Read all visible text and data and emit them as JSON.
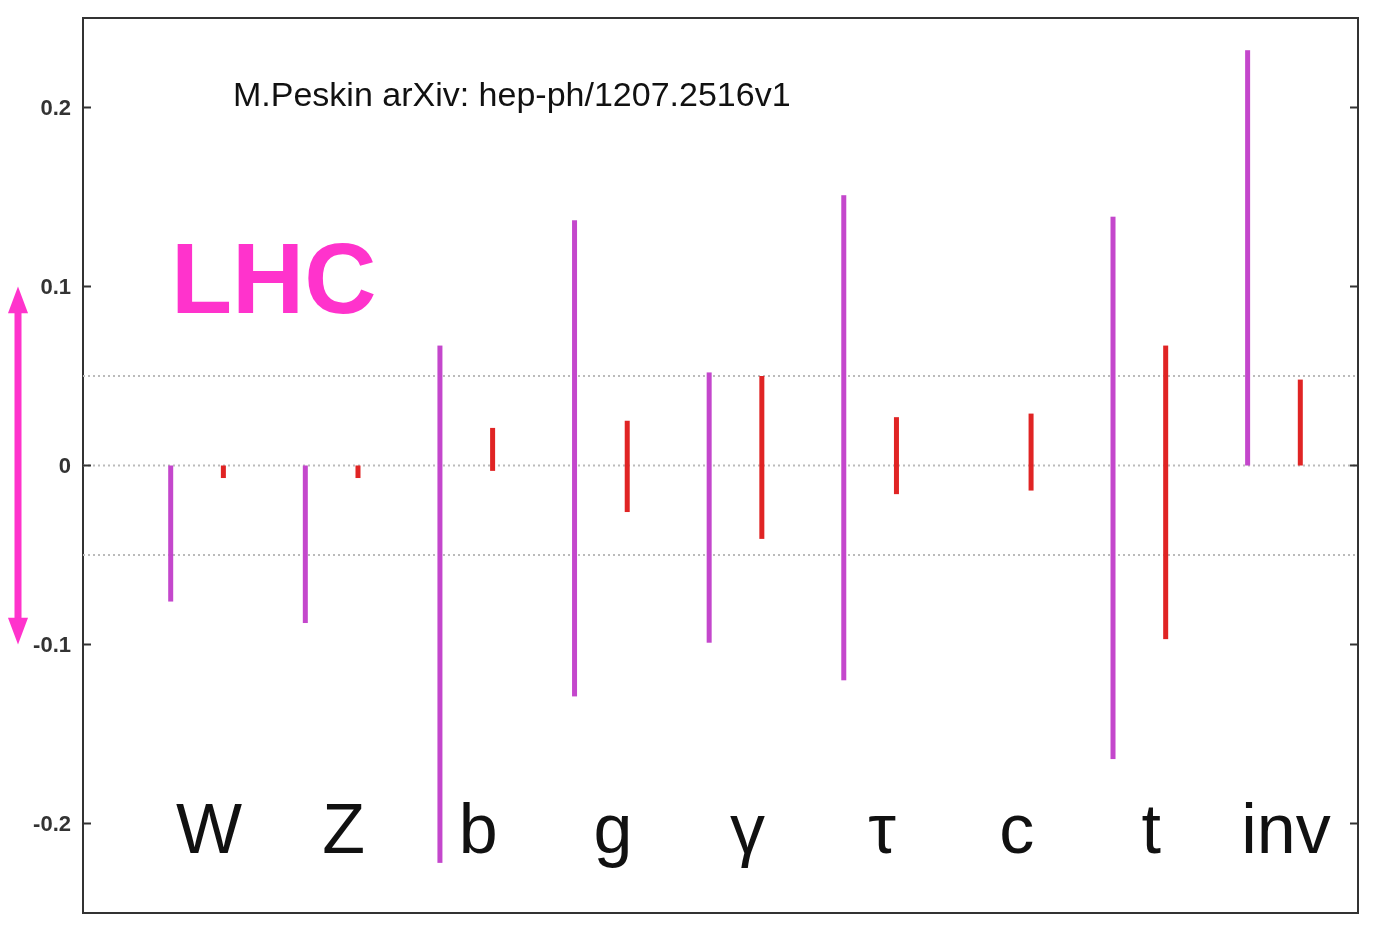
{
  "chart_data": {
    "type": "bar",
    "categories": [
      "W",
      "Z",
      "b",
      "g",
      "γ",
      "τ",
      "c",
      "t",
      "inv"
    ],
    "series": [
      {
        "name": "LHC",
        "color": "#c447cc",
        "base": [
          -0.076,
          -0.088,
          -0.222,
          -0.129,
          -0.099,
          -0.12,
          null,
          -0.164,
          0
        ],
        "values": [
          0.076,
          0.088,
          0.289,
          0.266,
          0.151,
          0.271,
          null,
          0.303,
          0.232
        ]
      },
      {
        "color": "#e02424",
        "base": [
          -0.007,
          -0.007,
          -0.003,
          -0.026,
          -0.041,
          -0.016,
          -0.014,
          -0.097,
          0
        ],
        "values": [
          0.007,
          0.007,
          0.024,
          0.051,
          0.091,
          0.043,
          0.043,
          0.164,
          0.048
        ]
      }
    ],
    "ylim": [
      -0.25,
      0.25
    ],
    "yticks": [
      -0.2,
      -0.1,
      0,
      0.1,
      0.2
    ],
    "ref_lines": [
      {
        "axis": "y",
        "value": 0.05,
        "color": "#bbbbbb",
        "line_style": "dotted"
      },
      {
        "axis": "y",
        "value": 0,
        "color": "#bbbbbb",
        "line_style": "dotted"
      },
      {
        "axis": "y",
        "value": -0.05,
        "color": "#bbbbbb",
        "line_style": "dotted"
      }
    ],
    "annotations": [
      "M.Peskin arXiv: hep-ph/1207.2516v1"
    ],
    "legend": false,
    "grid": false,
    "tick_labels": "y"
  }
}
